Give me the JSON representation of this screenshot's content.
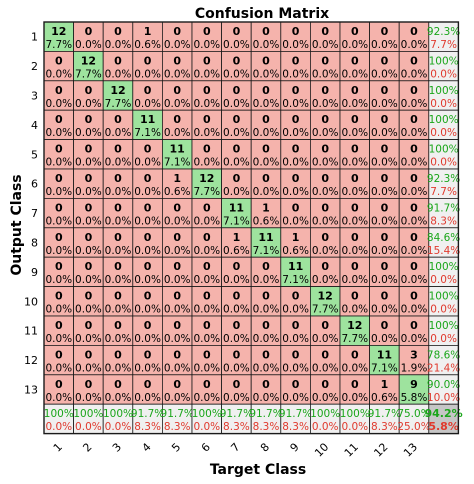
{
  "chart_data": {
    "type": "heatmap",
    "title": "Confusion Matrix",
    "xlabel": "Target Class",
    "ylabel": "Output Class",
    "classes": [
      "1",
      "2",
      "3",
      "4",
      "5",
      "6",
      "7",
      "8",
      "9",
      "10",
      "11",
      "12",
      "13"
    ],
    "matrix": [
      [
        12,
        0,
        0,
        1,
        0,
        0,
        0,
        0,
        0,
        0,
        0,
        0,
        0
      ],
      [
        0,
        12,
        0,
        0,
        0,
        0,
        0,
        0,
        0,
        0,
        0,
        0,
        0
      ],
      [
        0,
        0,
        12,
        0,
        0,
        0,
        0,
        0,
        0,
        0,
        0,
        0,
        0
      ],
      [
        0,
        0,
        0,
        11,
        0,
        0,
        0,
        0,
        0,
        0,
        0,
        0,
        0
      ],
      [
        0,
        0,
        0,
        0,
        11,
        0,
        0,
        0,
        0,
        0,
        0,
        0,
        0
      ],
      [
        0,
        0,
        0,
        0,
        1,
        12,
        0,
        0,
        0,
        0,
        0,
        0,
        0
      ],
      [
        0,
        0,
        0,
        0,
        0,
        0,
        11,
        1,
        0,
        0,
        0,
        0,
        0
      ],
      [
        0,
        0,
        0,
        0,
        0,
        0,
        1,
        11,
        1,
        0,
        0,
        0,
        0
      ],
      [
        0,
        0,
        0,
        0,
        0,
        0,
        0,
        0,
        11,
        0,
        0,
        0,
        0
      ],
      [
        0,
        0,
        0,
        0,
        0,
        0,
        0,
        0,
        0,
        12,
        0,
        0,
        0
      ],
      [
        0,
        0,
        0,
        0,
        0,
        0,
        0,
        0,
        0,
        0,
        12,
        0,
        0
      ],
      [
        0,
        0,
        0,
        0,
        0,
        0,
        0,
        0,
        0,
        0,
        0,
        11,
        3
      ],
      [
        0,
        0,
        0,
        0,
        0,
        0,
        0,
        0,
        0,
        0,
        0,
        1,
        9
      ]
    ],
    "cell_percent": [
      [
        "7.7%",
        "0.0%",
        "0.0%",
        "0.6%",
        "0.0%",
        "0.0%",
        "0.0%",
        "0.0%",
        "0.0%",
        "0.0%",
        "0.0%",
        "0.0%",
        "0.0%"
      ],
      [
        "0.0%",
        "7.7%",
        "0.0%",
        "0.0%",
        "0.0%",
        "0.0%",
        "0.0%",
        "0.0%",
        "0.0%",
        "0.0%",
        "0.0%",
        "0.0%",
        "0.0%"
      ],
      [
        "0.0%",
        "0.0%",
        "7.7%",
        "0.0%",
        "0.0%",
        "0.0%",
        "0.0%",
        "0.0%",
        "0.0%",
        "0.0%",
        "0.0%",
        "0.0%",
        "0.0%"
      ],
      [
        "0.0%",
        "0.0%",
        "0.0%",
        "7.1%",
        "0.0%",
        "0.0%",
        "0.0%",
        "0.0%",
        "0.0%",
        "0.0%",
        "0.0%",
        "0.0%",
        "0.0%"
      ],
      [
        "0.0%",
        "0.0%",
        "0.0%",
        "0.0%",
        "7.1%",
        "0.0%",
        "0.0%",
        "0.0%",
        "0.0%",
        "0.0%",
        "0.0%",
        "0.0%",
        "0.0%"
      ],
      [
        "0.0%",
        "0.0%",
        "0.0%",
        "0.0%",
        "0.6%",
        "7.7%",
        "0.0%",
        "0.0%",
        "0.0%",
        "0.0%",
        "0.0%",
        "0.0%",
        "0.0%"
      ],
      [
        "0.0%",
        "0.0%",
        "0.0%",
        "0.0%",
        "0.0%",
        "0.0%",
        "7.1%",
        "0.6%",
        "0.0%",
        "0.0%",
        "0.0%",
        "0.0%",
        "0.0%"
      ],
      [
        "0.0%",
        "0.0%",
        "0.0%",
        "0.0%",
        "0.0%",
        "0.0%",
        "0.6%",
        "7.1%",
        "0.6%",
        "0.0%",
        "0.0%",
        "0.0%",
        "0.0%"
      ],
      [
        "0.0%",
        "0.0%",
        "0.0%",
        "0.0%",
        "0.0%",
        "0.0%",
        "0.0%",
        "0.0%",
        "7.1%",
        "0.0%",
        "0.0%",
        "0.0%",
        "0.0%"
      ],
      [
        "0.0%",
        "0.0%",
        "0.0%",
        "0.0%",
        "0.0%",
        "0.0%",
        "0.0%",
        "0.0%",
        "0.0%",
        "7.7%",
        "0.0%",
        "0.0%",
        "0.0%"
      ],
      [
        "0.0%",
        "0.0%",
        "0.0%",
        "0.0%",
        "0.0%",
        "0.0%",
        "0.0%",
        "0.0%",
        "0.0%",
        "0.0%",
        "7.7%",
        "0.0%",
        "0.0%"
      ],
      [
        "0.0%",
        "0.0%",
        "0.0%",
        "0.0%",
        "0.0%",
        "0.0%",
        "0.0%",
        "0.0%",
        "0.0%",
        "0.0%",
        "0.0%",
        "7.1%",
        "1.9%"
      ],
      [
        "0.0%",
        "0.0%",
        "0.0%",
        "0.0%",
        "0.0%",
        "0.0%",
        "0.0%",
        "0.0%",
        "0.0%",
        "0.0%",
        "0.0%",
        "0.6%",
        "5.8%"
      ]
    ],
    "row_summary": [
      [
        "92.3%",
        "7.7%"
      ],
      [
        "100%",
        "0.0%"
      ],
      [
        "100%",
        "0.0%"
      ],
      [
        "100%",
        "0.0%"
      ],
      [
        "100%",
        "0.0%"
      ],
      [
        "92.3%",
        "7.7%"
      ],
      [
        "91.7%",
        "8.3%"
      ],
      [
        "84.6%",
        "15.4%"
      ],
      [
        "100%",
        "0.0%"
      ],
      [
        "100%",
        "0.0%"
      ],
      [
        "100%",
        "0.0%"
      ],
      [
        "78.6%",
        "21.4%"
      ],
      [
        "90.0%",
        "10.0%"
      ]
    ],
    "col_summary": [
      [
        "100%",
        "0.0%"
      ],
      [
        "100%",
        "0.0%"
      ],
      [
        "100%",
        "0.0%"
      ],
      [
        "91.7%",
        "8.3%"
      ],
      [
        "91.7%",
        "8.3%"
      ],
      [
        "100%",
        "0.0%"
      ],
      [
        "91.7%",
        "8.3%"
      ],
      [
        "91.7%",
        "8.3%"
      ],
      [
        "91.7%",
        "8.3%"
      ],
      [
        "100%",
        "0.0%"
      ],
      [
        "100%",
        "0.0%"
      ],
      [
        "91.7%",
        "8.3%"
      ],
      [
        "75.0%",
        "25.0%"
      ]
    ],
    "overall": [
      "94.2%",
      "5.8%"
    ],
    "colors": {
      "correct": "#9ee39e",
      "incorrect": "#f5b3ac",
      "summary": "#f0f0f0",
      "overall": "#c6c6c6",
      "good_text": "#1aa61a",
      "bad_text": "#e03a2e"
    }
  }
}
